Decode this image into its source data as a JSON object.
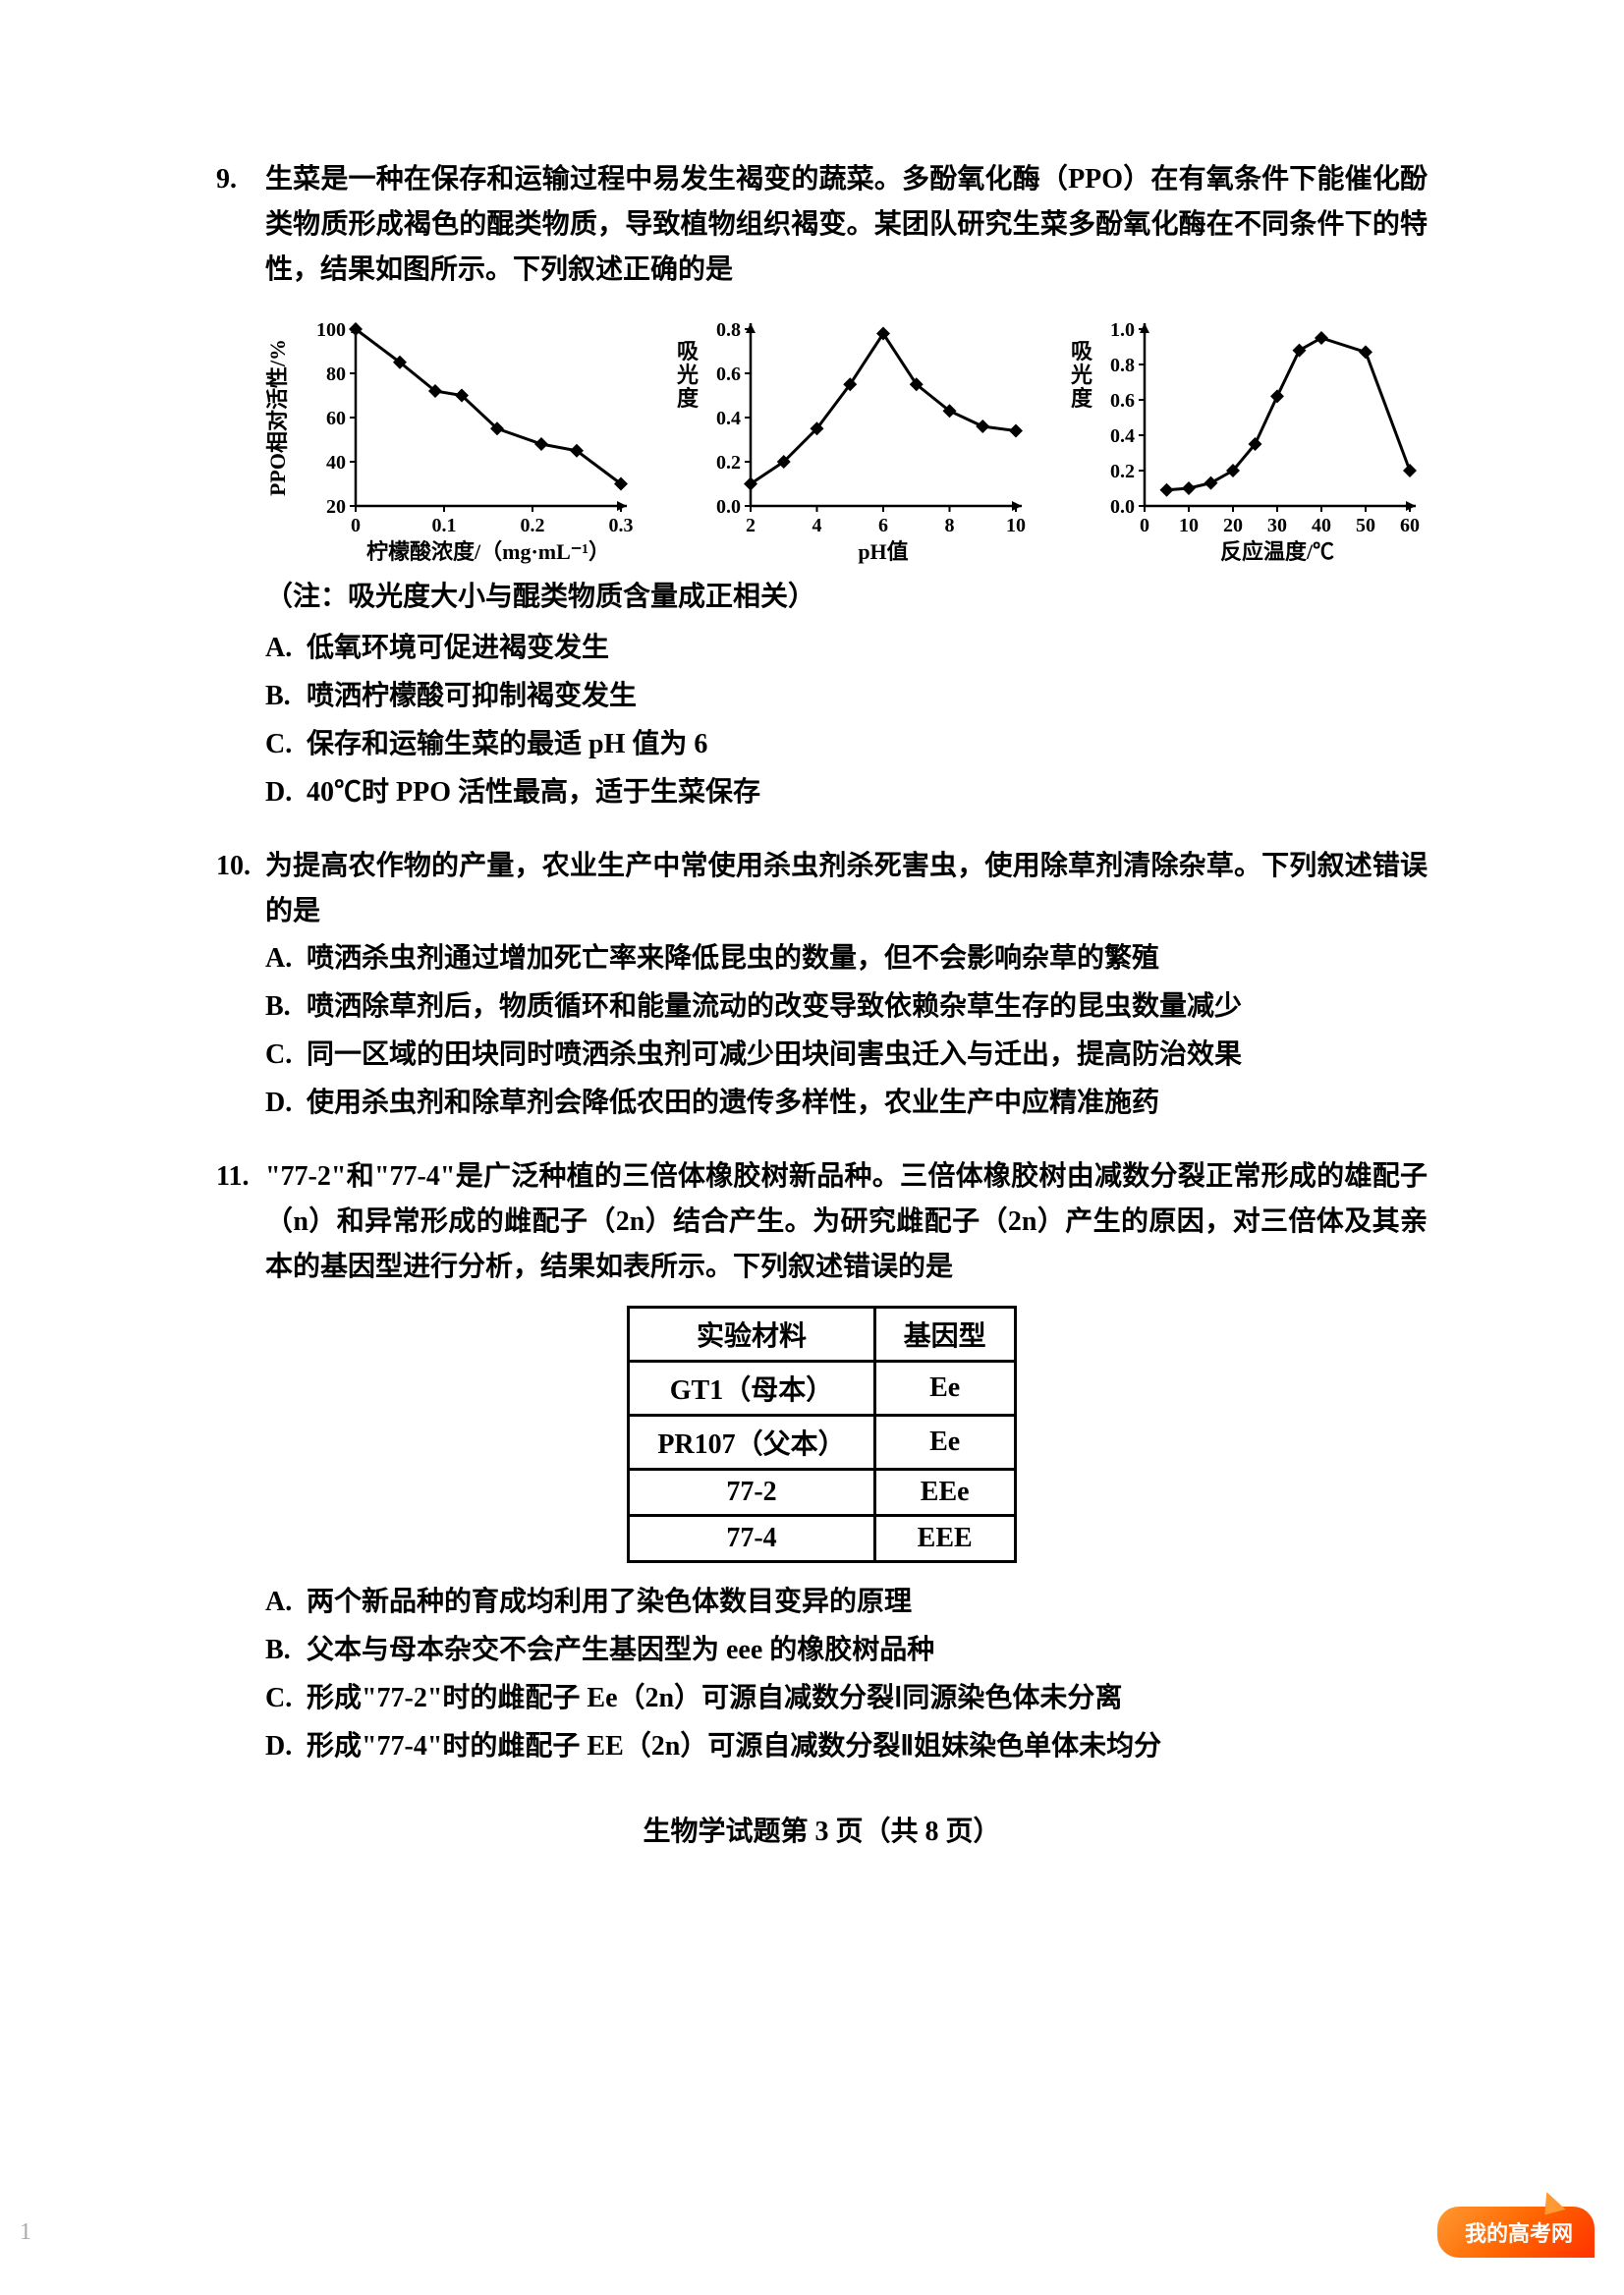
{
  "q9": {
    "number": "9.",
    "stem": "生菜是一种在保存和运输过程中易发生褐变的蔬菜。多酚氧化酶（PPO）在有氧条件下能催化酚类物质形成褐色的醌类物质，导致植物组织褐变。某团队研究生菜多酚氧化酶在不同条件下的特性，结果如图所示。下列叙述正确的是",
    "note": "（注：吸光度大小与醌类物质含量成正相关）",
    "options": {
      "A": "低氧环境可促进褐变发生",
      "B": "喷洒柠檬酸可抑制褐变发生",
      "C": "保存和运输生菜的最适 pH 值为 6",
      "D": "40℃时 PPO 活性最高，适于生菜保存"
    },
    "chart1": {
      "type": "line",
      "ylabel": "PPO相对活性/%",
      "xlabel": "柠檬酸浓度/（mg·mL⁻¹）",
      "xlim": [
        0,
        0.3
      ],
      "ylim": [
        20,
        100
      ],
      "ytick_step": 20,
      "xticks": [
        0,
        0.1,
        0.2,
        0.3
      ],
      "points": [
        [
          0,
          100
        ],
        [
          0.05,
          85
        ],
        [
          0.09,
          72
        ],
        [
          0.12,
          70
        ],
        [
          0.16,
          55
        ],
        [
          0.21,
          48
        ],
        [
          0.25,
          45
        ],
        [
          0.3,
          30
        ]
      ],
      "line_color": "#000000",
      "marker": "diamond",
      "marker_size": 7,
      "axis_width": 2.5,
      "tick_fontsize": 20,
      "label_fontsize": 22,
      "background": "#ffffff"
    },
    "chart2": {
      "type": "line",
      "ylabel": "吸光度",
      "xlabel": "pH值",
      "xlim": [
        2,
        10
      ],
      "ylim": [
        0,
        0.8
      ],
      "ytick_step": 0.2,
      "xticks": [
        2,
        4,
        6,
        8,
        10
      ],
      "points": [
        [
          2,
          0.1
        ],
        [
          3,
          0.2
        ],
        [
          4,
          0.35
        ],
        [
          5,
          0.55
        ],
        [
          6,
          0.78
        ],
        [
          7,
          0.55
        ],
        [
          8,
          0.43
        ],
        [
          9,
          0.36
        ],
        [
          10,
          0.34
        ]
      ],
      "line_color": "#000000",
      "marker": "diamond",
      "marker_size": 7,
      "axis_width": 2.5,
      "tick_fontsize": 20,
      "label_fontsize": 22,
      "background": "#ffffff"
    },
    "chart3": {
      "type": "line",
      "ylabel": "吸光度",
      "xlabel": "反应温度/℃",
      "xlim": [
        0,
        60
      ],
      "ylim": [
        0,
        1.0
      ],
      "ytick_step": 0.2,
      "xticks": [
        0,
        10,
        20,
        30,
        40,
        50,
        60
      ],
      "points": [
        [
          5,
          0.09
        ],
        [
          10,
          0.1
        ],
        [
          15,
          0.13
        ],
        [
          20,
          0.2
        ],
        [
          25,
          0.35
        ],
        [
          30,
          0.62
        ],
        [
          35,
          0.88
        ],
        [
          40,
          0.95
        ],
        [
          50,
          0.87
        ],
        [
          60,
          0.2
        ]
      ],
      "line_color": "#000000",
      "marker": "diamond",
      "marker_size": 7,
      "axis_width": 2.5,
      "tick_fontsize": 20,
      "label_fontsize": 22,
      "background": "#ffffff"
    }
  },
  "q10": {
    "number": "10.",
    "stem": "为提高农作物的产量，农业生产中常使用杀虫剂杀死害虫，使用除草剂清除杂草。下列叙述错误的是",
    "options": {
      "A": "喷洒杀虫剂通过增加死亡率来降低昆虫的数量，但不会影响杂草的繁殖",
      "B": "喷洒除草剂后，物质循环和能量流动的改变导致依赖杂草生存的昆虫数量减少",
      "C": "同一区域的田块同时喷洒杀虫剂可减少田块间害虫迁入与迁出，提高防治效果",
      "D": "使用杀虫剂和除草剂会降低农田的遗传多样性，农业生产中应精准施药"
    }
  },
  "q11": {
    "number": "11.",
    "stem": "\"77-2\"和\"77-4\"是广泛种植的三倍体橡胶树新品种。三倍体橡胶树由减数分裂正常形成的雄配子（n）和异常形成的雌配子（2n）结合产生。为研究雌配子（2n）产生的原因，对三倍体及其亲本的基因型进行分析，结果如表所示。下列叙述错误的是",
    "table": {
      "columns": [
        "实验材料",
        "基因型"
      ],
      "rows": [
        [
          "GT1（母本）",
          "Ee"
        ],
        [
          "PR107（父本）",
          "Ee"
        ],
        [
          "77-2",
          "EEe"
        ],
        [
          "77-4",
          "EEE"
        ]
      ],
      "border_color": "#000000",
      "border_width": 3,
      "cell_padding": "6px 28px",
      "fontsize": 28
    },
    "options": {
      "A": "两个新品种的育成均利用了染色体数目变异的原理",
      "B": "父本与母本杂交不会产生基因型为 eee 的橡胶树品种",
      "C": "形成\"77-2\"时的雌配子 Ee（2n）可源自减数分裂Ⅰ同源染色体未分离",
      "D": "形成\"77-4\"时的雌配子 EE（2n）可源自减数分裂Ⅱ姐妹染色单体未均分"
    }
  },
  "footer": "生物学试题第 3 页（共 8 页）",
  "watermark": "我的高考网",
  "page_num_left": "1"
}
